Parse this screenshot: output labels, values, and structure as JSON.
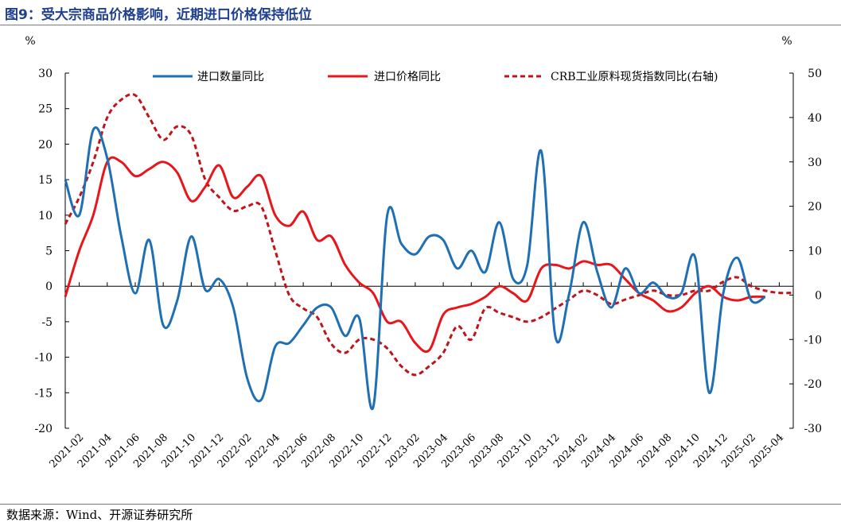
{
  "title": "图9：受大宗商品价格影响，近期进口价格保持低位",
  "source": "数据来源：Wind、开源证券研究所",
  "chart_data": {
    "type": "line",
    "left_unit": "%",
    "right_unit": "%",
    "y_left": {
      "min": -20,
      "max": 30,
      "ticks": [
        "-20",
        "-15",
        "-10",
        "-5",
        "0",
        "5",
        "10",
        "15",
        "20",
        "25",
        "30"
      ]
    },
    "y_right": {
      "min": -30,
      "max": 50,
      "ticks": [
        "-30",
        "-20",
        "-10",
        "0",
        "10",
        "20",
        "30",
        "40",
        "50"
      ]
    },
    "x_tick_labels": [
      "2021-02",
      "2021-04",
      "2021-06",
      "2021-08",
      "2021-10",
      "2021-12",
      "2022-02",
      "2022-04",
      "2022-06",
      "2022-08",
      "2022-10",
      "2022-12",
      "2023-02",
      "2023-04",
      "2023-06",
      "2023-08",
      "2023-10",
      "2023-12",
      "2024-02",
      "2024-04",
      "2024-06",
      "2024-08",
      "2024-10",
      "2024-12",
      "2025-02",
      "2025-04"
    ],
    "series": [
      {
        "name": "进口数量同比",
        "color": "#1f6fb5",
        "dash": "none",
        "axis": "left",
        "x": [
          "2021-01",
          "2021-02",
          "2021-03",
          "2021-04",
          "2021-05",
          "2021-06",
          "2021-07",
          "2021-08",
          "2021-09",
          "2021-10",
          "2021-11",
          "2021-12",
          "2022-01",
          "2022-02",
          "2022-03",
          "2022-04",
          "2022-05",
          "2022-06",
          "2022-07",
          "2022-08",
          "2022-09",
          "2022-10",
          "2022-11",
          "2022-12",
          "2023-01",
          "2023-02",
          "2023-03",
          "2023-04",
          "2023-05",
          "2023-06",
          "2023-07",
          "2023-08",
          "2023-09",
          "2023-10",
          "2023-11",
          "2023-12",
          "2024-01",
          "2024-02",
          "2024-03",
          "2024-04",
          "2024-05",
          "2024-06",
          "2024-07",
          "2024-08",
          "2024-09",
          "2024-10",
          "2024-11",
          "2024-12",
          "2025-01",
          "2025-02",
          "2025-03"
        ],
        "values": [
          15,
          10,
          22,
          18,
          7,
          -1,
          6.5,
          -5.5,
          -2,
          7,
          -0.5,
          1,
          -3,
          -13,
          -16,
          -8.5,
          -8,
          -5.5,
          -3,
          -3,
          -7,
          -4.5,
          -17,
          10,
          6,
          4.5,
          7,
          6.5,
          2.5,
          5,
          2,
          9,
          1,
          3,
          19,
          -7,
          -1,
          9,
          2,
          -3,
          2.5,
          -1,
          0.5,
          -1.5,
          -1,
          4,
          -15,
          -1,
          4,
          -2,
          -1.5
        ]
      },
      {
        "name": "进口价格同比",
        "color": "#e8161b",
        "dash": "none",
        "axis": "left",
        "x": [
          "2021-01",
          "2021-02",
          "2021-03",
          "2021-04",
          "2021-05",
          "2021-06",
          "2021-07",
          "2021-08",
          "2021-09",
          "2021-10",
          "2021-11",
          "2021-12",
          "2022-01",
          "2022-02",
          "2022-03",
          "2022-04",
          "2022-05",
          "2022-06",
          "2022-07",
          "2022-08",
          "2022-09",
          "2022-10",
          "2022-11",
          "2022-12",
          "2023-01",
          "2023-02",
          "2023-03",
          "2023-04",
          "2023-05",
          "2023-06",
          "2023-07",
          "2023-08",
          "2023-09",
          "2023-10",
          "2023-11",
          "2023-12",
          "2024-01",
          "2024-02",
          "2024-03",
          "2024-04",
          "2024-05",
          "2024-06",
          "2024-07",
          "2024-08",
          "2024-09",
          "2024-10",
          "2024-11",
          "2024-12",
          "2025-01",
          "2025-02",
          "2025-03"
        ],
        "values": [
          -1.5,
          5,
          10,
          17.5,
          17.5,
          15.5,
          16.5,
          17.5,
          16,
          12,
          14,
          17,
          12.5,
          14,
          15.5,
          10,
          8.5,
          10.5,
          6.5,
          7,
          3,
          0.5,
          -1,
          -5,
          -5,
          -8,
          -9,
          -4,
          -3,
          -2.5,
          -1.5,
          0,
          -1,
          -2,
          2.5,
          3,
          2.5,
          3.5,
          3,
          3,
          1,
          -1,
          -2,
          -3.5,
          -3,
          -1,
          0,
          -1.5,
          -2,
          -1.5,
          -1.5
        ]
      },
      {
        "name": "CRB工业原料现货指数同比(右轴)",
        "color": "#c0141b",
        "dash": "6,4",
        "axis": "right",
        "x": [
          "2021-01",
          "2021-02",
          "2021-03",
          "2021-04",
          "2021-05",
          "2021-06",
          "2021-07",
          "2021-08",
          "2021-09",
          "2021-10",
          "2021-11",
          "2021-12",
          "2022-01",
          "2022-02",
          "2022-03",
          "2022-04",
          "2022-05",
          "2022-06",
          "2022-07",
          "2022-08",
          "2022-09",
          "2022-10",
          "2022-11",
          "2022-12",
          "2023-01",
          "2023-02",
          "2023-03",
          "2023-04",
          "2023-05",
          "2023-06",
          "2023-07",
          "2023-08",
          "2023-09",
          "2023-10",
          "2023-11",
          "2023-12",
          "2024-01",
          "2024-02",
          "2024-03",
          "2024-04",
          "2024-05",
          "2024-06",
          "2024-07",
          "2024-08",
          "2024-09",
          "2024-10",
          "2024-11",
          "2024-12",
          "2025-01",
          "2025-02",
          "2025-03",
          "2025-04",
          "2025-05"
        ],
        "values": [
          16,
          22,
          30,
          40,
          44,
          45,
          40,
          35,
          38,
          36,
          26,
          22,
          19,
          20,
          20,
          10,
          0,
          -3,
          -5,
          -11,
          -13,
          -10,
          -10,
          -12,
          -16,
          -18,
          -16,
          -13,
          -7,
          -10,
          -3,
          -4,
          -5,
          -6,
          -5,
          -3,
          -1,
          1,
          0,
          -2,
          -1,
          0,
          1,
          0,
          0,
          1,
          1,
          3,
          4,
          2,
          1,
          0.5,
          0.5
        ]
      }
    ]
  }
}
